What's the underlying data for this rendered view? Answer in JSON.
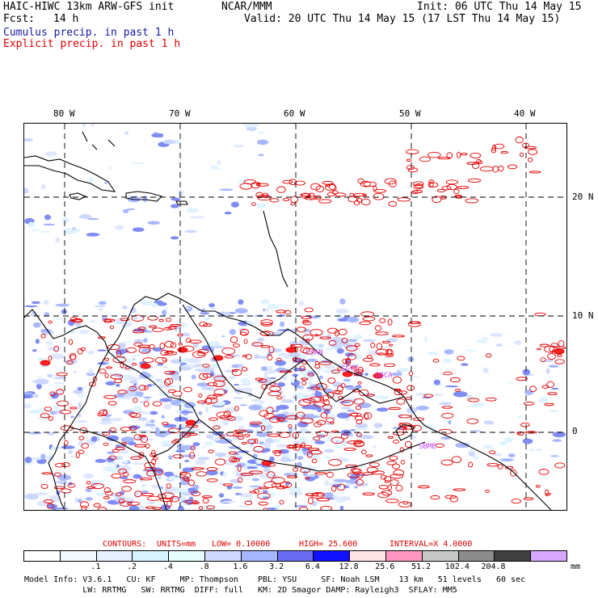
{
  "header": {
    "model_title": "HAIC-HIWC 13km ARW-GFS init",
    "org": "NCAR/MMM",
    "init": "Init: 06 UTC Thu 14 May 15",
    "fcst_label": "Fcst:",
    "fcst_value": "14 h",
    "valid": "Valid: 20 UTC Thu 14 May 15 (17 LST Thu 14 May 15)",
    "cumulus": "Cumulus precip. in past 1 h",
    "explicit": "Explicit precip. in past 1 h"
  },
  "map": {
    "lon_labels": [
      "80 W",
      "70 W",
      "60 W",
      "50 W",
      "40 W"
    ],
    "lat_labels": [
      "20 N",
      "10 N",
      "0"
    ],
    "city_labels": [
      "CYAN",
      "SGTT",
      "SBCA",
      "SBME"
    ],
    "colors": {
      "cumulus": "#5a6cf0",
      "explicit": "#e60000",
      "coast": "#000000"
    }
  },
  "contours": {
    "label": "CONTOURS:",
    "units": "UNITS=mm",
    "low": "LOW= 0.10000",
    "high": "HIGH= 25.600",
    "interval": "INTERVAL=X 4.0000"
  },
  "colorbar": {
    "colors": [
      "#ffffff",
      "#f4f8ff",
      "#e6efff",
      "#d6f4ff",
      "#e7fdfb",
      "#cfd8ff",
      "#a6b6ff",
      "#6c6cf2",
      "#1010ff",
      "#ffe4e8",
      "#ff96c0",
      "#c8c8c8",
      "#8c8c8c",
      "#404040",
      "#d8a8ff"
    ],
    "ticks": [
      ".1",
      ".2",
      ".4",
      ".8",
      "1.6",
      "3.2",
      "6.4",
      "12.8",
      "25.6",
      "51.2",
      "102.4",
      "204.8"
    ],
    "unit": "mm"
  },
  "model_info": {
    "line1": "Model Info: V3.6.1   CU: KF     MP: Thompson    PBL: YSU     SF: Noah LSM    13 km   51 levels   60 sec",
    "line2": "            LW: RRTMG   SW: RRTMG  DIFF: full   KM: 2D Smagor DAMP: Rayleigh3  SFLAY: MM5"
  }
}
